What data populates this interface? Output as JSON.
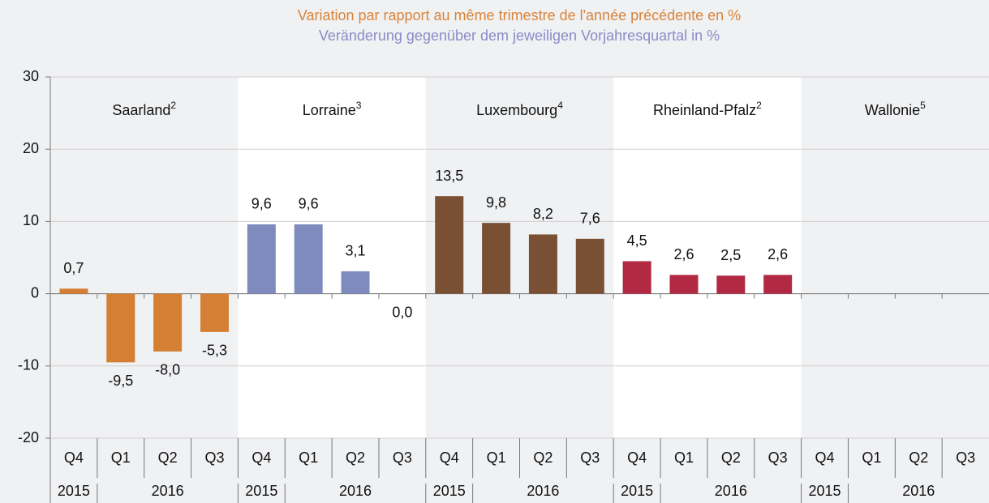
{
  "chart_data": {
    "type": "bar",
    "title": "Variation par rapport au même trimestre de l'année précédente en %",
    "subtitle": "Veränderung gegenüber dem jeweiligen Vorjahresquartal in %",
    "title_color": "#d9843a",
    "subtitle_color": "#8a8cc8",
    "ylim": [
      -20,
      30
    ],
    "yticks": [
      -20,
      -10,
      0,
      10,
      20,
      30
    ],
    "grid": true,
    "groups": [
      {
        "name": "Saarland",
        "note": "2",
        "color": "#d47f33",
        "categories": [
          "Q4",
          "Q1",
          "Q2",
          "Q3"
        ],
        "years": [
          "2015",
          "2016"
        ],
        "values": [
          0.7,
          -9.5,
          -8.0,
          -5.3
        ],
        "value_labels": [
          "0,7",
          "-9,5",
          "-8,0",
          "-5,3"
        ]
      },
      {
        "name": "Lorraine",
        "note": "3",
        "color": "#7f8bbd",
        "categories": [
          "Q4",
          "Q1",
          "Q2",
          "Q3"
        ],
        "years": [
          "2015",
          "2016"
        ],
        "values": [
          9.6,
          9.6,
          3.1,
          0.0
        ],
        "value_labels": [
          "9,6",
          "9,6",
          "3,1",
          "0,0"
        ]
      },
      {
        "name": "Luxembourg",
        "note": "4",
        "color": "#7a5035",
        "categories": [
          "Q4",
          "Q1",
          "Q2",
          "Q3"
        ],
        "years": [
          "2015",
          "2016"
        ],
        "values": [
          13.5,
          9.8,
          8.2,
          7.6
        ],
        "value_labels": [
          "13,5",
          "9,8",
          "8,2",
          "7,6"
        ]
      },
      {
        "name": "Rheinland-Pfalz",
        "note": "2",
        "color": "#b12943",
        "categories": [
          "Q4",
          "Q1",
          "Q2",
          "Q3"
        ],
        "years": [
          "2015",
          "2016"
        ],
        "values": [
          4.5,
          2.6,
          2.5,
          2.6
        ],
        "value_labels": [
          "4,5",
          "2,6",
          "2,5",
          "2,6"
        ]
      },
      {
        "name": "Wallonie",
        "note": "5",
        "color": "#888888",
        "categories": [
          "Q4",
          "Q1",
          "Q2",
          "Q3"
        ],
        "years": [
          "2015",
          "2016"
        ],
        "values": [
          null,
          null,
          null,
          null
        ],
        "value_labels": [
          null,
          null,
          null,
          null
        ]
      }
    ]
  }
}
